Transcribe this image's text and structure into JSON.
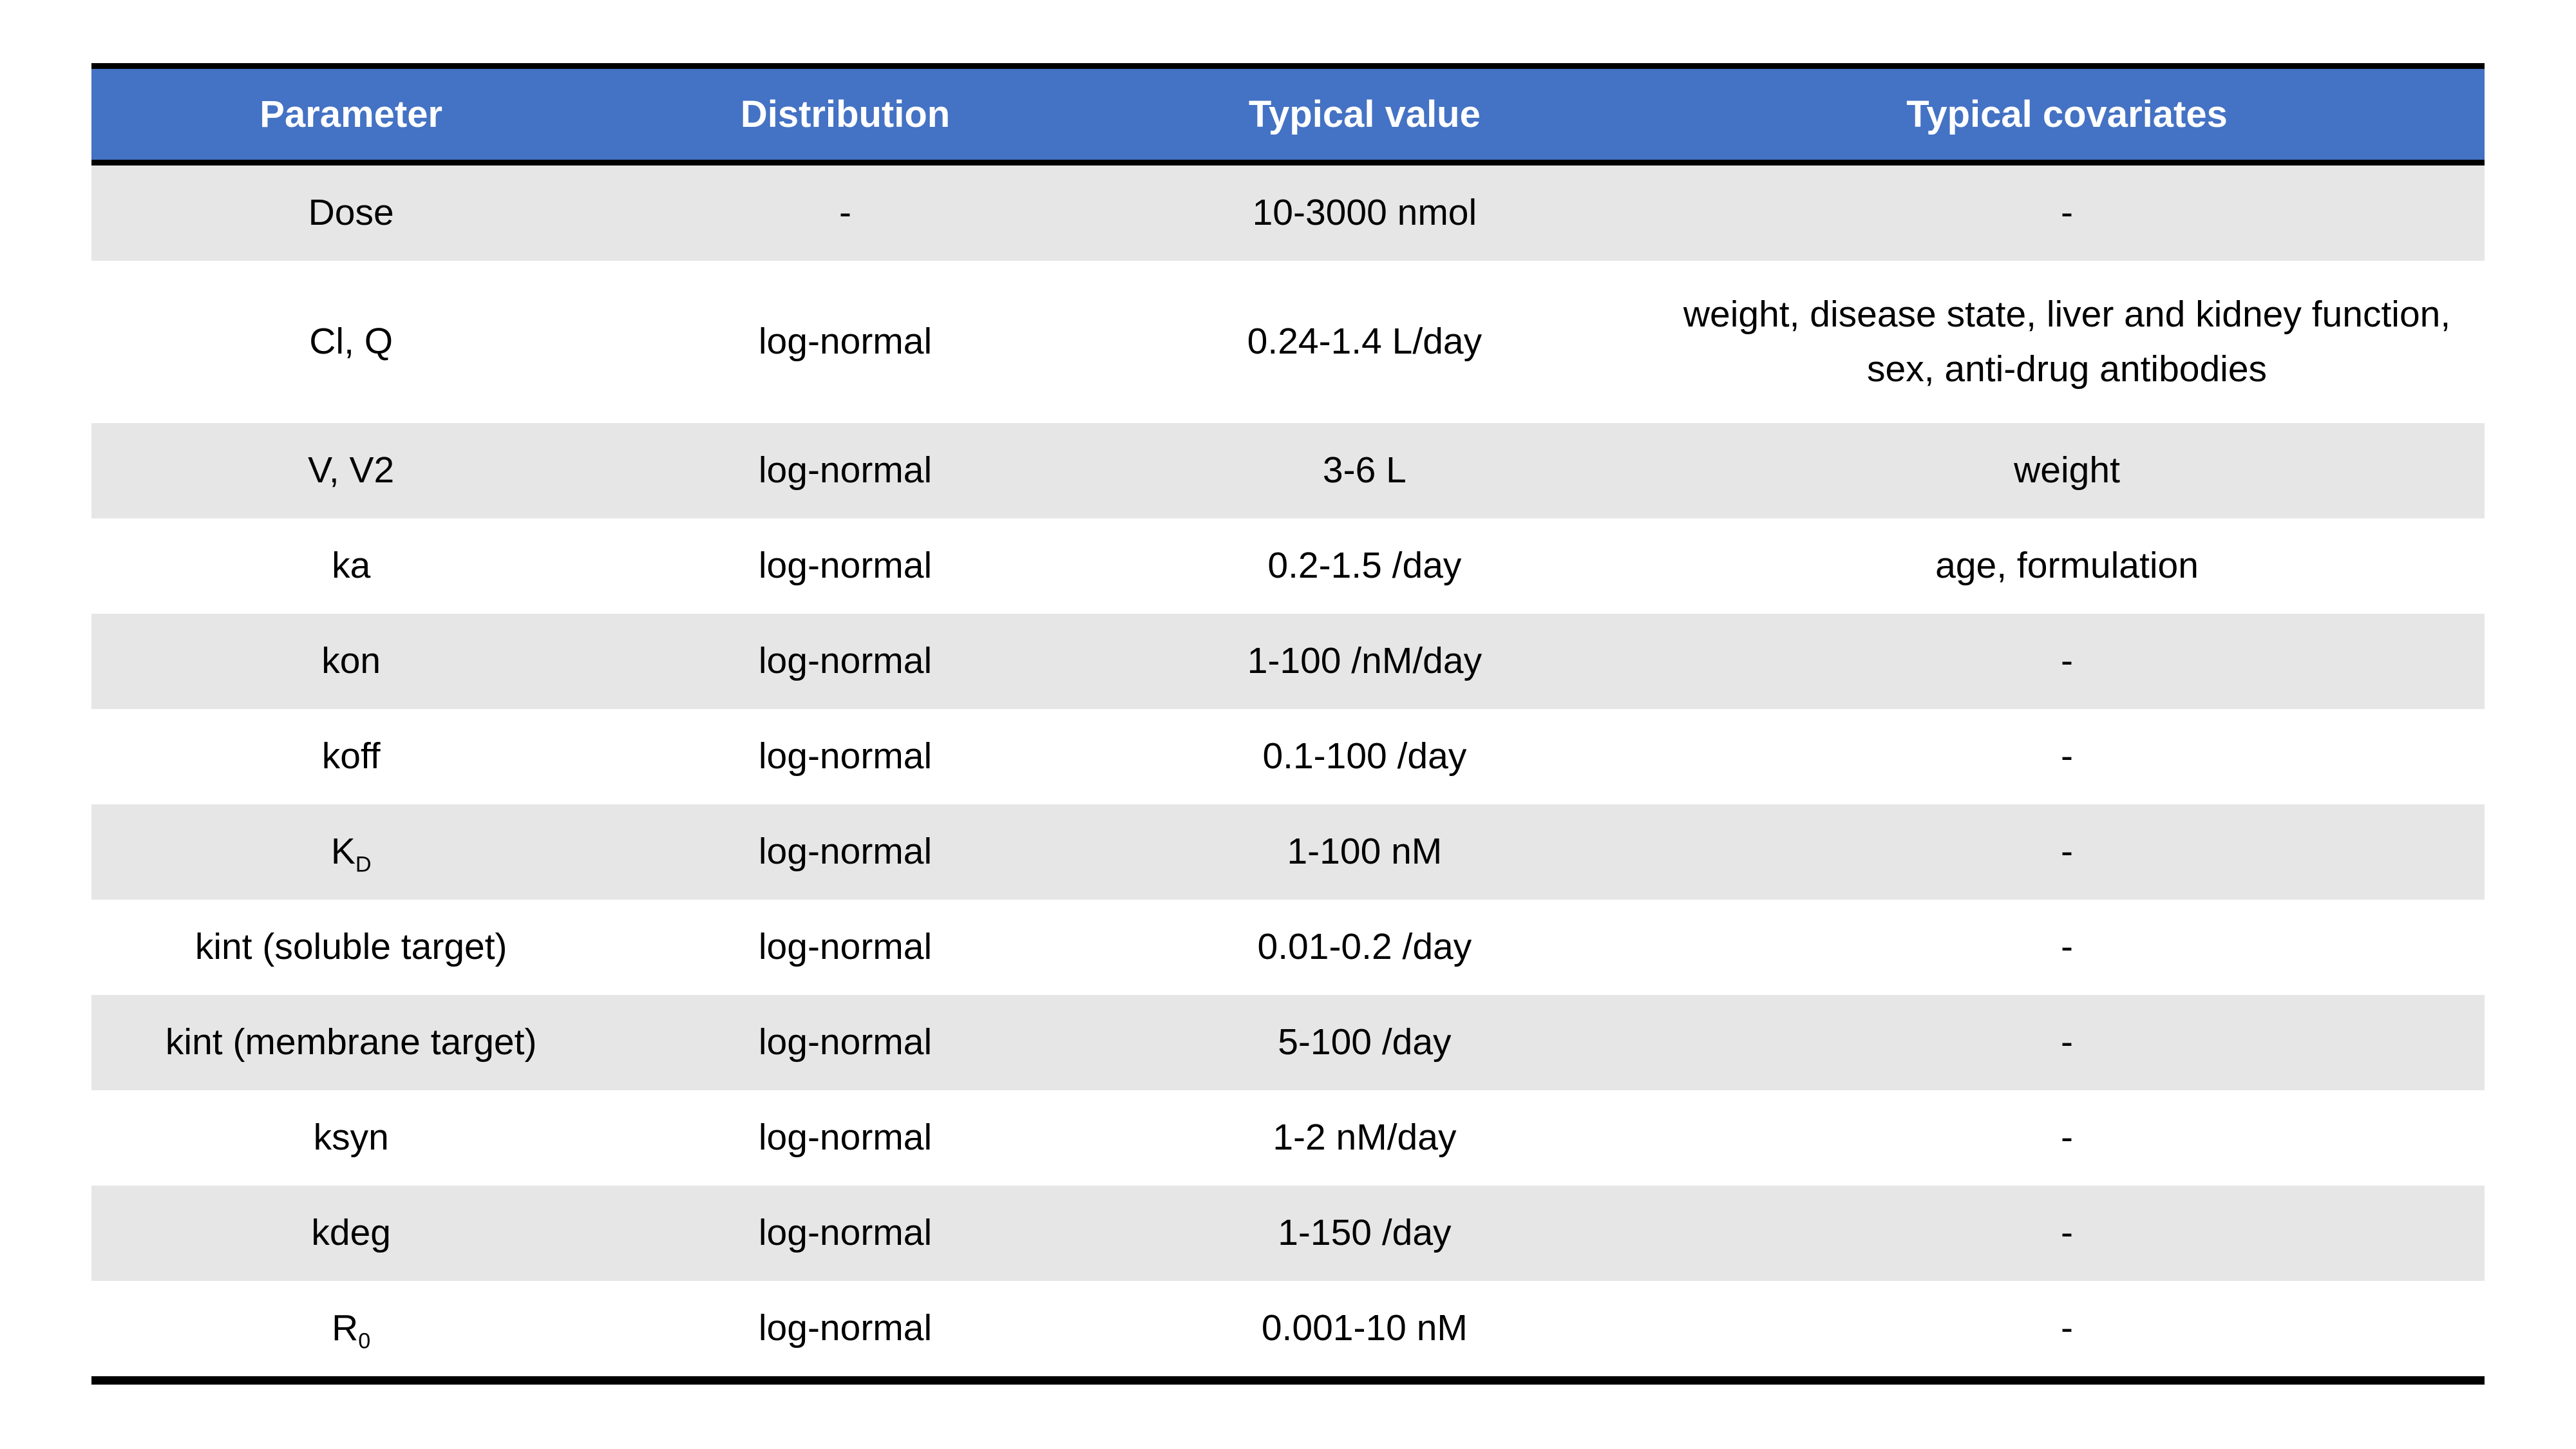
{
  "page": {
    "background": "#FFFFFF"
  },
  "table": {
    "style": {
      "header_bg": "#4472C4",
      "header_text_color": "#FFFFFF",
      "alt_row_bg": "#E7E6E6",
      "row_bg": "#FFFFFF",
      "border_color": "#000000"
    },
    "columns": [
      {
        "label": "Parameter"
      },
      {
        "label": "Distribution"
      },
      {
        "label": "Typical value"
      },
      {
        "label": "Typical covariates"
      }
    ],
    "rows": [
      {
        "parameter": "Dose",
        "parameter_sub": "",
        "distribution": "-",
        "typical_value": "10-3000 nmol",
        "covariates": "-"
      },
      {
        "parameter": "Cl, Q",
        "parameter_sub": "",
        "distribution": "log-normal",
        "typical_value": "0.24-1.4 L/day",
        "covariates": "weight, disease state, liver and kidney function, sex, anti-drug antibodies"
      },
      {
        "parameter": "V, V2",
        "parameter_sub": "",
        "distribution": "log-normal",
        "typical_value": "3-6 L",
        "covariates": "weight"
      },
      {
        "parameter": "ka",
        "parameter_sub": "",
        "distribution": "log-normal",
        "typical_value": "0.2-1.5 /day",
        "covariates": "age, formulation"
      },
      {
        "parameter": "kon",
        "parameter_sub": "",
        "distribution": "log-normal",
        "typical_value": "1-100 /nM/day",
        "covariates": "-"
      },
      {
        "parameter": "koff",
        "parameter_sub": "",
        "distribution": "log-normal",
        "typical_value": "0.1-100 /day",
        "covariates": "-"
      },
      {
        "parameter": "K",
        "parameter_sub": "D",
        "distribution": "log-normal",
        "typical_value": "1-100 nM",
        "covariates": "-"
      },
      {
        "parameter": "kint (soluble target)",
        "parameter_sub": "",
        "distribution": "log-normal",
        "typical_value": "0.01-0.2 /day",
        "covariates": "-"
      },
      {
        "parameter": "kint (membrane target)",
        "parameter_sub": "",
        "distribution": "log-normal",
        "typical_value": "5-100 /day",
        "covariates": "-"
      },
      {
        "parameter": "ksyn",
        "parameter_sub": "",
        "distribution": "log-normal",
        "typical_value": "1-2 nM/day",
        "covariates": "-"
      },
      {
        "parameter": "kdeg",
        "parameter_sub": "",
        "distribution": "log-normal",
        "typical_value": "1-150 /day",
        "covariates": "-"
      },
      {
        "parameter": "R",
        "parameter_sub": "0",
        "distribution": "log-normal",
        "typical_value": "0.001-10 nM",
        "covariates": "-"
      }
    ]
  },
  "chart_data": {
    "type": "table",
    "title": "",
    "columns": [
      "Parameter",
      "Distribution",
      "Typical value",
      "Typical covariates"
    ],
    "rows": [
      [
        "Dose",
        "-",
        "10-3000 nmol",
        "-"
      ],
      [
        "Cl, Q",
        "log-normal",
        "0.24-1.4 L/day",
        "weight, disease state, liver and kidney function, sex, anti-drug antibodies"
      ],
      [
        "V, V2",
        "log-normal",
        "3-6 L",
        "weight"
      ],
      [
        "ka",
        "log-normal",
        "0.2-1.5 /day",
        "age, formulation"
      ],
      [
        "kon",
        "log-normal",
        "1-100 /nM/day",
        "-"
      ],
      [
        "koff",
        "log-normal",
        "0.1-100 /day",
        "-"
      ],
      [
        "K_D",
        "log-normal",
        "1-100 nM",
        "-"
      ],
      [
        "kint (soluble target)",
        "log-normal",
        "0.01-0.2 /day",
        "-"
      ],
      [
        "kint (membrane target)",
        "log-normal",
        "5-100 /day",
        "-"
      ],
      [
        "ksyn",
        "log-normal",
        "1-2 nM/day",
        "-"
      ],
      [
        "kdeg",
        "log-normal",
        "1-150 /day",
        "-"
      ],
      [
        "R_0",
        "log-normal",
        "0.001-10 nM",
        "-"
      ]
    ]
  }
}
